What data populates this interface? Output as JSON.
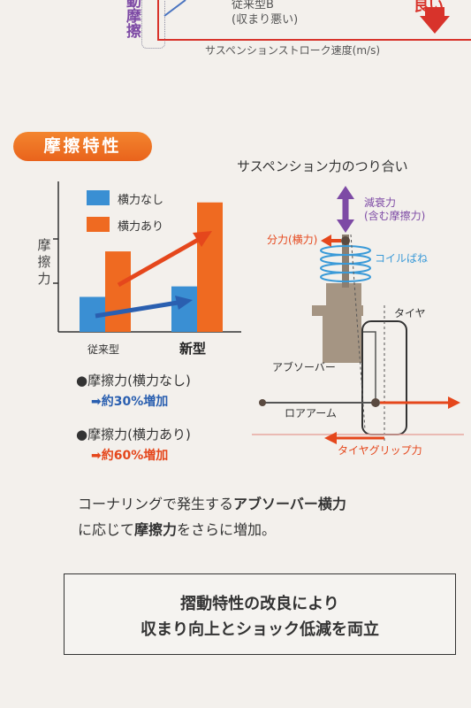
{
  "top_chart": {
    "left_label": "動摩擦",
    "legend_line1": "従来型B",
    "legend_line2": "(収まり悪い)",
    "xlabel": "サスペンションストローク速度(m/s)",
    "right_label": "良い"
  },
  "section": {
    "title": "摩擦特性"
  },
  "chart": {
    "ylabel": "摩擦力",
    "legend": [
      "横力なし",
      "横力あり"
    ],
    "colors": {
      "no_lateral": "#3a8fd3",
      "lateral": "#ef6a21",
      "axis": "#333333",
      "arrow_blue": "#2a5fb0",
      "arrow_red": "#e5471c"
    }
  },
  "chart_data": {
    "type": "bar",
    "categories": [
      "従来型",
      "新型"
    ],
    "series": [
      {
        "name": "横力なし",
        "values": [
          1.0,
          1.3
        ]
      },
      {
        "name": "横力あり",
        "values": [
          2.3,
          3.7
        ]
      }
    ],
    "ylabel": "摩擦力",
    "ylim": [
      0,
      4.3
    ],
    "legend_position": "top-left"
  },
  "results": [
    {
      "label": "●摩擦力(横力なし)",
      "value": "➡約30%増加",
      "color": "#2a5fb0"
    },
    {
      "label": "●摩擦力(横力あり)",
      "value": "➡約60%増加",
      "color": "#e5471c"
    }
  ],
  "diagram": {
    "title": "サスペンション力のつり合い",
    "damping_line1": "減衰力",
    "damping_line2": "(含む摩擦力)",
    "component_force": "分力(横力)",
    "coil_spring": "コイルばね",
    "tire": "タイヤ",
    "absorber": "アブソーバー",
    "lower_arm": "ロアアーム",
    "tire_grip": "タイヤグリップ力"
  },
  "body": {
    "line1_a": "コーナリングで発生する",
    "line1_b": "アブソーバー横力",
    "line2_a": "に応じて",
    "line2_b": "摩擦力",
    "line2_c": "をさらに増加。"
  },
  "summary": {
    "line1": "摺動特性の改良により",
    "line2": "収まり向上とショック低減を両立"
  }
}
